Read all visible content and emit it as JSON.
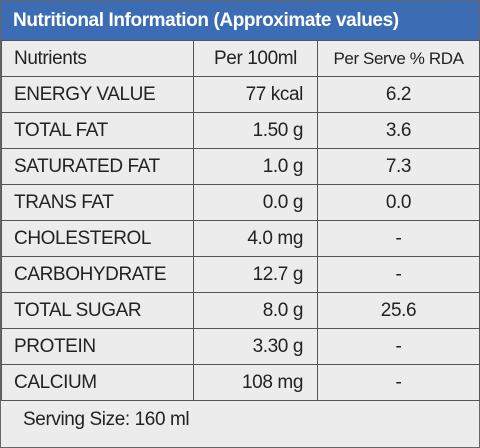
{
  "header": {
    "title": "Nutritional Information (Approximate values)"
  },
  "table": {
    "columns": [
      "Nutrients",
      "Per 100ml",
      "Per Serve % RDA"
    ],
    "rows": [
      [
        "ENERGY VALUE",
        "77 kcal",
        "6.2"
      ],
      [
        "TOTAL FAT",
        "1.50 g",
        "3.6"
      ],
      [
        "SATURATED FAT",
        "1.0 g",
        "7.3"
      ],
      [
        "TRANS FAT",
        "0.0 g",
        "0.0"
      ],
      [
        "CHOLESTEROL",
        "4.0 mg",
        "-"
      ],
      [
        "CARBOHYDRATE",
        "12.7 g",
        "-"
      ],
      [
        "TOTAL SUGAR",
        "8.0 g",
        "25.6"
      ],
      [
        "PROTEIN",
        "3.30 g",
        "-"
      ],
      [
        "CALCIUM",
        "108 mg",
        "-"
      ]
    ]
  },
  "footer": {
    "serving_size": "Serving Size: 160 ml"
  }
}
